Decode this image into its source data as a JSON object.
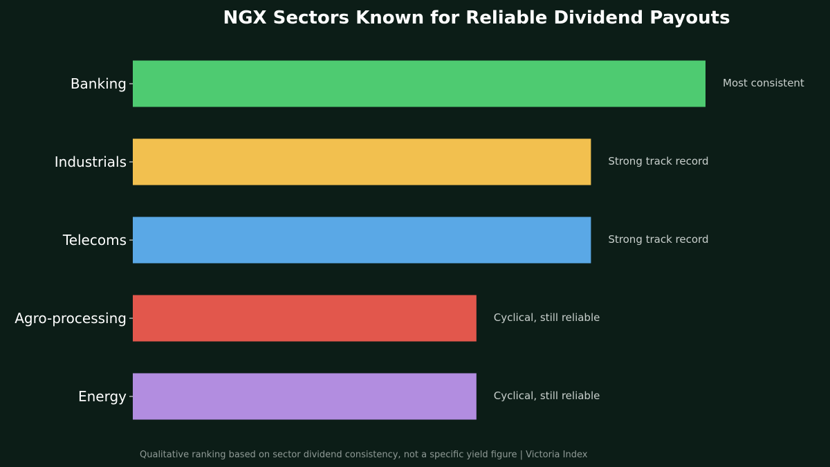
{
  "chart_data": {
    "type": "bar",
    "orientation": "horizontal",
    "title": "NGX Sectors Known for Reliable Dividend Payouts",
    "categories": [
      "Banking",
      "Industrials",
      "Telecoms",
      "Agro-processing",
      "Energy"
    ],
    "values": [
      5,
      4,
      4,
      3,
      3
    ],
    "xlim": [
      0,
      5
    ],
    "annotations": [
      "Most consistent",
      "Strong track record",
      "Strong track record",
      "Cyclical, still reliable",
      "Cyclical, still reliable"
    ],
    "colors": [
      "#4ecb71",
      "#f2c04f",
      "#5aa8e6",
      "#e2574c",
      "#b28de0"
    ],
    "grid": false,
    "legend": "none"
  },
  "footnote": "Qualitative ranking based on sector dividend consistency, not a specific yield figure  |  Victoria Index",
  "background_color": "#0c1d17"
}
